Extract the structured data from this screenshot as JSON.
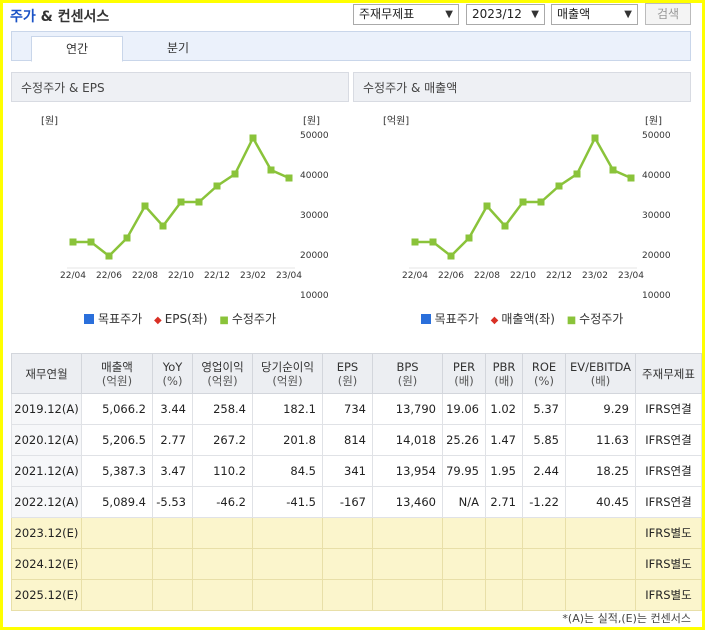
{
  "header": {
    "title_a": "주가",
    "title_b": " & 컨센서스",
    "filters": [
      "주재무제표",
      "2023/12",
      "매출액"
    ],
    "search_label": "검색"
  },
  "tabs": [
    {
      "label": "연간",
      "active": true
    },
    {
      "label": "분기",
      "active": false
    }
  ],
  "charts": [
    {
      "title": "수정주가 & EPS",
      "left_unit": "[원]",
      "right_unit": "[원]",
      "x_ticks": [
        "22/04",
        "22/06",
        "22/08",
        "22/10",
        "22/12",
        "23/02",
        "23/04"
      ],
      "y_ticks": [
        "50000",
        "40000",
        "30000",
        "20000",
        "10000"
      ],
      "legend": [
        "목표주가",
        "EPS(좌)",
        "수정주가"
      ]
    },
    {
      "title": "수정주가 & 매출액",
      "left_unit": "[억원]",
      "right_unit": "[원]",
      "x_ticks": [
        "22/04",
        "22/06",
        "22/08",
        "22/10",
        "22/12",
        "23/02",
        "23/04"
      ],
      "y_ticks": [
        "50000",
        "40000",
        "30000",
        "20000",
        "10000"
      ],
      "legend": [
        "목표주가",
        "매출액(좌)",
        "수정주가"
      ]
    }
  ],
  "chart_data": [
    {
      "type": "line",
      "title": "수정주가 & EPS",
      "x": [
        "22/04",
        "22/05",
        "22/06",
        "22/07",
        "22/08",
        "22/09",
        "22/10",
        "22/11",
        "22/12",
        "23/01",
        "23/02",
        "23/03",
        "23/04"
      ],
      "series": [
        {
          "name": "수정주가",
          "values": [
            23000,
            23000,
            19500,
            24000,
            32000,
            27000,
            33000,
            33000,
            37000,
            40000,
            49000,
            41000,
            39000
          ]
        }
      ],
      "ylim": [
        10000,
        50000
      ],
      "colors": {
        "price": "#8ac33a"
      }
    },
    {
      "type": "line",
      "title": "수정주가 & 매출액",
      "x": [
        "22/04",
        "22/05",
        "22/06",
        "22/07",
        "22/08",
        "22/09",
        "22/10",
        "22/11",
        "22/12",
        "23/01",
        "23/02",
        "23/03",
        "23/04"
      ],
      "series": [
        {
          "name": "수정주가",
          "values": [
            23000,
            23000,
            19500,
            24000,
            32000,
            27000,
            33000,
            33000,
            37000,
            40000,
            49000,
            41000,
            39000
          ]
        }
      ],
      "ylim": [
        10000,
        50000
      ],
      "colors": {
        "price": "#8ac33a"
      }
    }
  ],
  "table": {
    "headers": [
      [
        "재무연월",
        ""
      ],
      [
        "매출액",
        "(억원)"
      ],
      [
        "YoY",
        "(%)"
      ],
      [
        "영업이익",
        "(억원)"
      ],
      [
        "당기순이익",
        "(억원)"
      ],
      [
        "EPS",
        "(원)"
      ],
      [
        "BPS",
        "(원)"
      ],
      [
        "PER",
        "(배)"
      ],
      [
        "PBR",
        "(배)"
      ],
      [
        "ROE",
        "(%)"
      ],
      [
        "EV/EBITDA",
        "(배)"
      ],
      [
        "주재무제표",
        ""
      ]
    ],
    "rows": [
      [
        "2019.12(A)",
        "5,066.2",
        "3.44",
        "258.4",
        "182.1",
        "734",
        "13,790",
        "19.06",
        "1.02",
        "5.37",
        "9.29",
        "IFRS연결"
      ],
      [
        "2020.12(A)",
        "5,206.5",
        "2.77",
        "267.2",
        "201.8",
        "814",
        "14,018",
        "25.26",
        "1.47",
        "5.85",
        "11.63",
        "IFRS연결"
      ],
      [
        "2021.12(A)",
        "5,387.3",
        "3.47",
        "110.2",
        "84.5",
        "341",
        "13,954",
        "79.95",
        "1.95",
        "2.44",
        "18.25",
        "IFRS연결"
      ],
      [
        "2022.12(A)",
        "5,089.4",
        "-5.53",
        "-46.2",
        "-41.5",
        "-167",
        "13,460",
        "N/A",
        "2.71",
        "-1.22",
        "40.45",
        "IFRS연결"
      ],
      [
        "2023.12(E)",
        "",
        "",
        "",
        "",
        "",
        "",
        "",
        "",
        "",
        "",
        "IFRS별도"
      ],
      [
        "2024.12(E)",
        "",
        "",
        "",
        "",
        "",
        "",
        "",
        "",
        "",
        "",
        "IFRS별도"
      ],
      [
        "2025.12(E)",
        "",
        "",
        "",
        "",
        "",
        "",
        "",
        "",
        "",
        "",
        "IFRS별도"
      ]
    ]
  },
  "note": "*(A)는 실적,(E)는 컨센서스"
}
